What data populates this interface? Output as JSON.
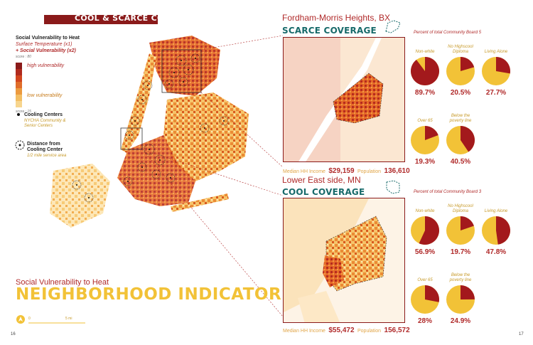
{
  "header": {
    "title": "COOL & SCARCE COVERAGE"
  },
  "legend": {
    "title": "Social Vulnerability to Heat",
    "line1": "Surface Temperature (x1)",
    "line2": "+ Social Vulnerability (x2)",
    "score_high": "score : 80",
    "high_label": "high vulnerability",
    "low_label": "low vulnerability",
    "score_low": "score : 15",
    "cooling_title": "Cooling Centers",
    "cooling_sub": "NYCHA Community & Senior Centers",
    "distance_title": "Distance from Cooling Center",
    "distance_sub": "1/2 mile service area",
    "ramp_colors": [
      "#8a1a1a",
      "#b02a1e",
      "#d1451e",
      "#e06d2a",
      "#ec9a3e",
      "#f3bd62",
      "#f7d58e"
    ]
  },
  "footer": {
    "subtitle": "Social Vulnerability to Heat",
    "main_title": "NEIGHBORHOOD INDICATORS",
    "scale_0": "0",
    "scale_5": "5 mi",
    "page_left": "16",
    "page_right": "17"
  },
  "fordham": {
    "place": "Fordham-Morris Heights, BX",
    "coverage": "SCARCE COVERAGE",
    "pct_title": "Percent of total Community Board 5",
    "indicators": [
      {
        "label": "Non-white",
        "value": "89.7%",
        "pct": 89.7
      },
      {
        "label": "No Highscool Diploma",
        "value": "20.5%",
        "pct": 20.5
      },
      {
        "label": "Living Alone",
        "value": "27.7%",
        "pct": 27.7
      },
      {
        "label": "Over 65",
        "value": "19.3%",
        "pct": 19.3
      },
      {
        "label": "Below the poverty line",
        "value": "40.5%",
        "pct": 40.5
      }
    ],
    "income_label": "Median HH Income",
    "income_value": "$29,159",
    "pop_label": "Population",
    "pop_value": "136,610"
  },
  "les": {
    "place": "Lower East side, MN",
    "coverage": "COOL COVERAGE",
    "pct_title": "Percent of total Community Board 3",
    "indicators": [
      {
        "label": "Non-white",
        "value": "56.9%",
        "pct": 56.9
      },
      {
        "label": "No Highscool Diploma",
        "value": "19.7%",
        "pct": 19.7
      },
      {
        "label": "Living Alone",
        "value": "47.8%",
        "pct": 47.8
      },
      {
        "label": "Over 65",
        "value": "28%",
        "pct": 28
      },
      {
        "label": "Below the poverty line",
        "value": "24.9%",
        "pct": 24.9
      }
    ],
    "income_label": "Median HH Income",
    "income_value": "$55,472",
    "pop_label": "Population",
    "pop_value": "156,572"
  },
  "colors": {
    "dark_red": "#8a1a1a",
    "pie_red": "#a3191c",
    "pie_gold": "#f2c237",
    "teal": "#176a6a"
  }
}
